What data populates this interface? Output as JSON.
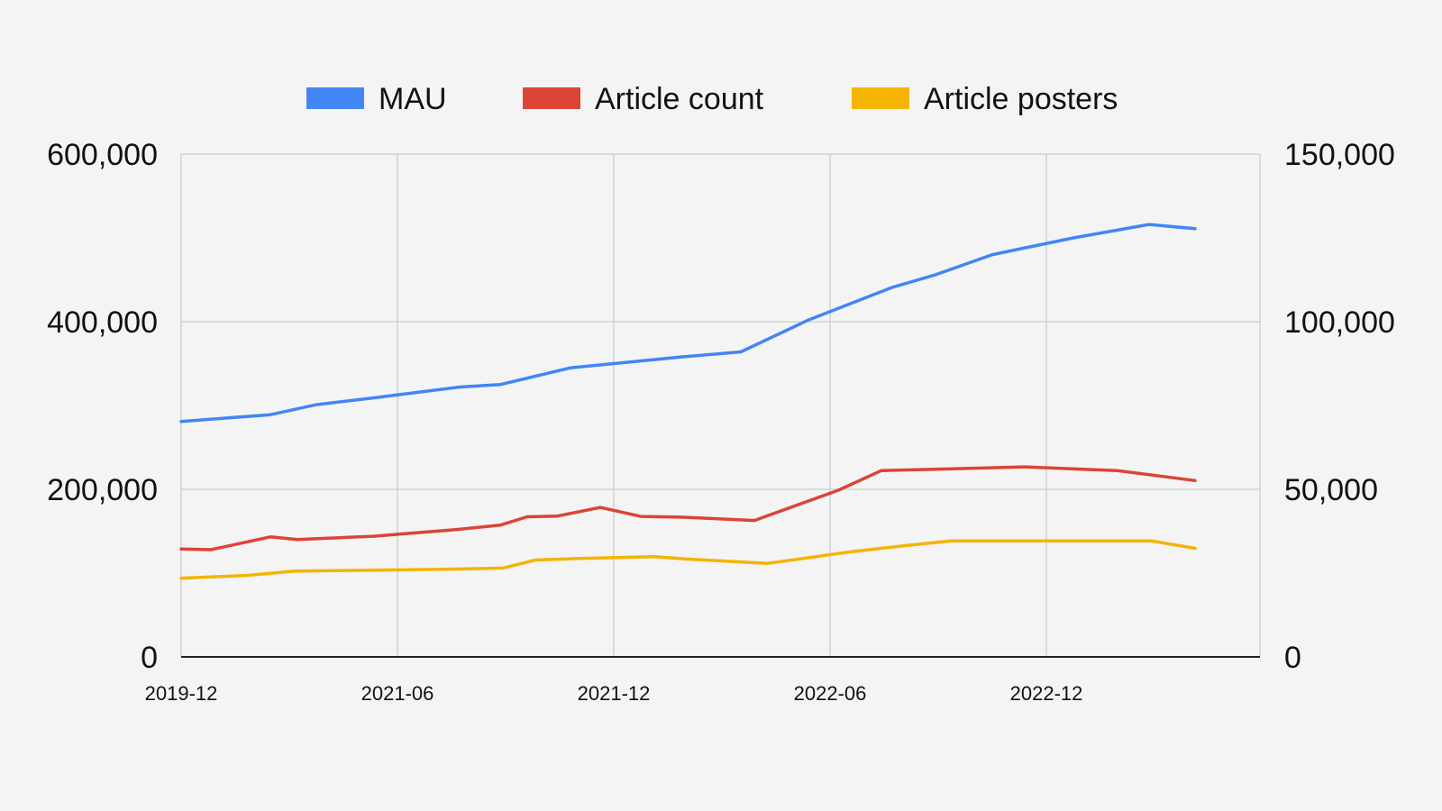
{
  "chart_data": {
    "type": "line",
    "title": "",
    "xlabel": "",
    "ylabel": "",
    "y2label": "",
    "x_ticks": [
      "2019-12",
      "2021-06",
      "2021-12",
      "2022-06",
      "2022-12"
    ],
    "y_left_ticks": [
      "0",
      "200,000",
      "400,000",
      "600,000"
    ],
    "y_right_ticks": [
      "0",
      "50,000",
      "100,000",
      "150,000"
    ],
    "ylim": [
      0,
      600000
    ],
    "y2lim": [
      0,
      150000
    ],
    "grid": true,
    "legend_position": "top-center",
    "series": [
      {
        "name": "MAU",
        "axis": "left",
        "color": "#4285F4",
        "points": [
          [
            0,
            281000
          ],
          [
            1.65,
            289000
          ],
          [
            2.5,
            301000
          ],
          [
            3.55,
            309000
          ],
          [
            5.15,
            322000
          ],
          [
            5.9,
            325000
          ],
          [
            7.2,
            345000
          ],
          [
            7.85,
            349000
          ],
          [
            9.25,
            358000
          ],
          [
            10.35,
            364000
          ],
          [
            11.6,
            402000
          ],
          [
            13.15,
            441000
          ],
          [
            13.95,
            456000
          ],
          [
            15.0,
            480000
          ],
          [
            16.5,
            500000
          ],
          [
            17.9,
            516000
          ],
          [
            18.75,
            511000
          ]
        ]
      },
      {
        "name": "Article count",
        "axis": "right",
        "color": "#DB4437",
        "points": [
          [
            0,
            32200
          ],
          [
            0.55,
            32000
          ],
          [
            1.05,
            33700
          ],
          [
            1.65,
            35800
          ],
          [
            2.15,
            35000
          ],
          [
            3.55,
            36000
          ],
          [
            5.1,
            38000
          ],
          [
            5.9,
            39300
          ],
          [
            6.4,
            41800
          ],
          [
            6.95,
            42000
          ],
          [
            7.75,
            44600
          ],
          [
            8.5,
            41900
          ],
          [
            9.25,
            41700
          ],
          [
            10.6,
            40700
          ],
          [
            12.15,
            49700
          ],
          [
            12.95,
            55600
          ],
          [
            13.95,
            56000
          ],
          [
            15.6,
            56700
          ],
          [
            17.3,
            55600
          ],
          [
            18.75,
            52600
          ]
        ]
      },
      {
        "name": "Article posters",
        "axis": "right",
        "color": "#F4B400",
        "points": [
          [
            0,
            23500
          ],
          [
            1.2,
            24300
          ],
          [
            2.1,
            25600
          ],
          [
            3.55,
            25900
          ],
          [
            5.1,
            26200
          ],
          [
            5.95,
            26500
          ],
          [
            6.55,
            28900
          ],
          [
            7.45,
            29400
          ],
          [
            8.75,
            29900
          ],
          [
            9.35,
            29200
          ],
          [
            10.85,
            27900
          ],
          [
            12.4,
            31400
          ],
          [
            13.5,
            33400
          ],
          [
            14.25,
            34600
          ],
          [
            17.95,
            34600
          ],
          [
            18.75,
            32400
          ]
        ]
      }
    ]
  }
}
